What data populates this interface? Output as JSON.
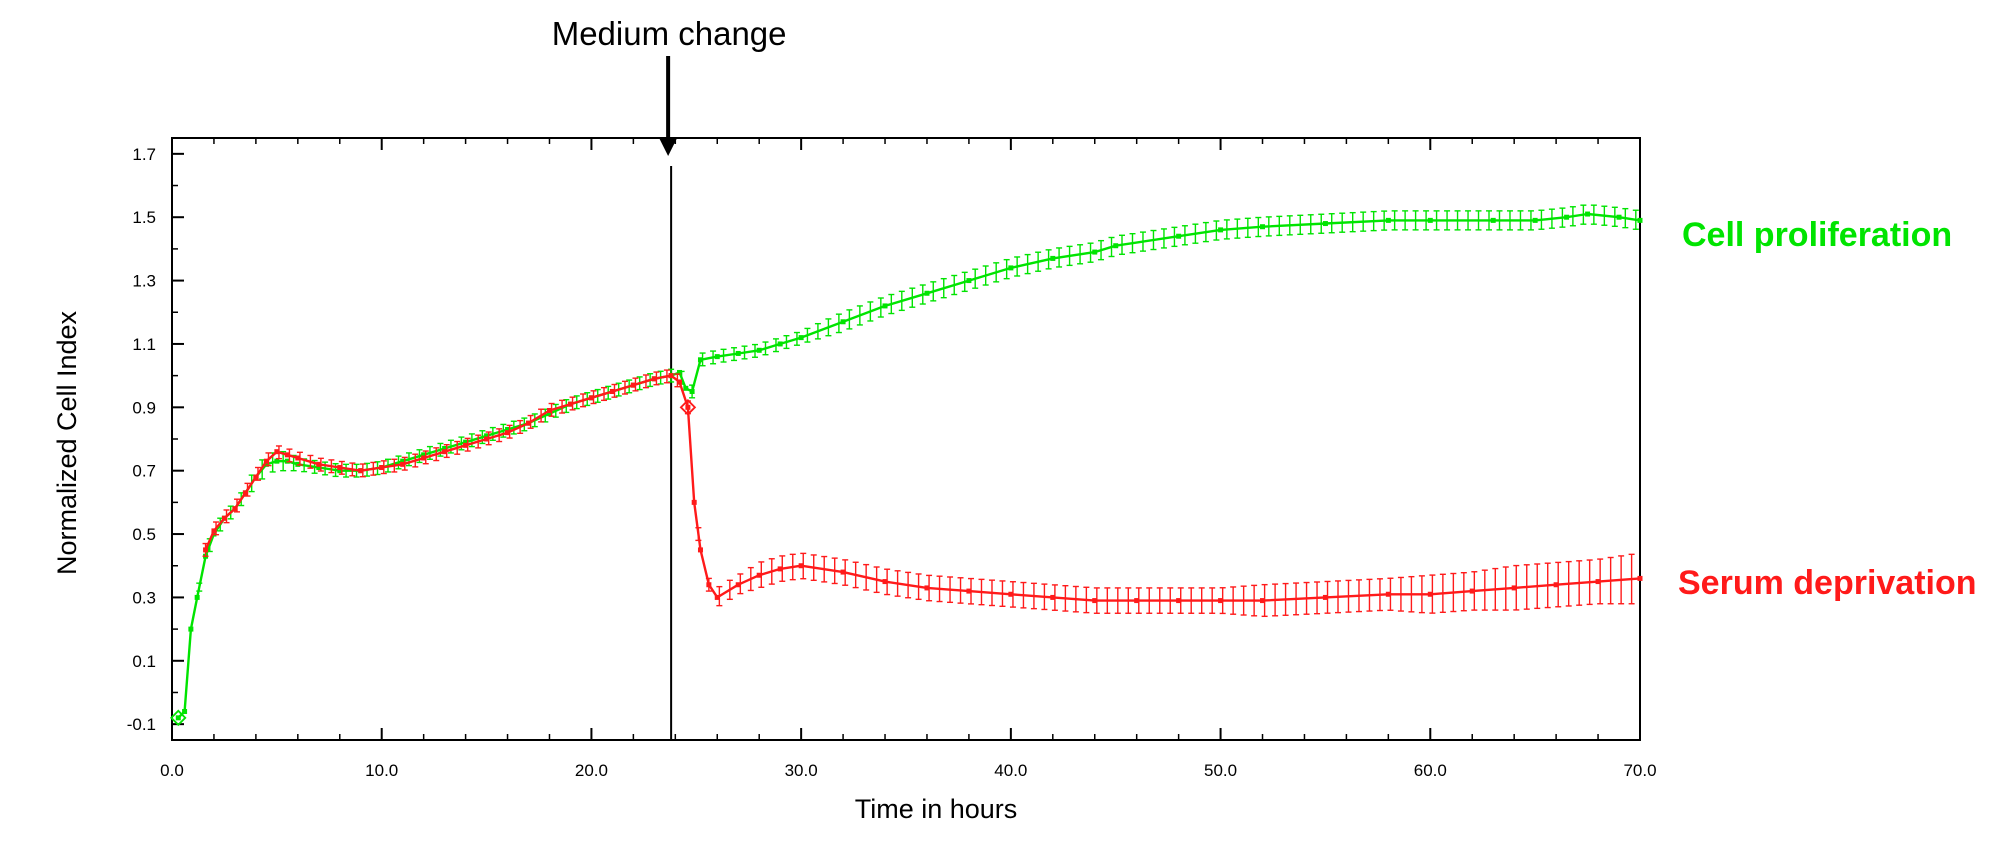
{
  "chart_data": {
    "type": "line",
    "xlabel": "Time in hours",
    "ylabel": "Normalized Cell Index",
    "xlim": [
      0,
      70
    ],
    "ylim": [
      -0.15,
      1.75
    ],
    "xticks": [
      0.0,
      10.0,
      20.0,
      30.0,
      40.0,
      50.0,
      60.0,
      70.0
    ],
    "xtick_labels": [
      "0.0",
      "10.0",
      "20.0",
      "30.0",
      "40.0",
      "50.0",
      "60.0",
      "70.0"
    ],
    "yticks": [
      -0.1,
      0.1,
      0.3,
      0.5,
      0.7,
      0.9,
      1.1,
      1.3,
      1.5,
      1.7
    ],
    "ytick_labels": [
      "-0.1",
      "0.1",
      "0.3",
      "0.5",
      "0.7",
      "0.9",
      "1.1",
      "1.3",
      "1.5",
      "1.7"
    ],
    "grid": false,
    "annotations": [
      {
        "text": "Medium change",
        "x": 23.8
      }
    ],
    "series": [
      {
        "name": "Cell proliferation",
        "color": "#00e400",
        "x": [
          0.3,
          0.6,
          0.9,
          1.2,
          1.6,
          2.0,
          2.5,
          3.0,
          3.5,
          4.0,
          4.5,
          5.0,
          5.5,
          6.0,
          7.0,
          8.0,
          9.0,
          10.0,
          11.0,
          12.0,
          13.0,
          14.0,
          15.0,
          16.0,
          17.0,
          18.0,
          19.0,
          20.0,
          21.0,
          22.0,
          23.0,
          23.8,
          24.2,
          24.5,
          24.8,
          25.2,
          26.0,
          27.0,
          28.0,
          29.0,
          30.0,
          32.0,
          34.0,
          36.0,
          38.0,
          40.0,
          42.0,
          44.0,
          45.0,
          48.0,
          50.0,
          52.0,
          55.0,
          58.0,
          60.0,
          63.0,
          65.0,
          66.5,
          67.5,
          69.0,
          70.0
        ],
        "values": [
          -0.08,
          -0.06,
          0.2,
          0.3,
          0.43,
          0.5,
          0.55,
          0.58,
          0.63,
          0.68,
          0.72,
          0.73,
          0.73,
          0.72,
          0.71,
          0.7,
          0.7,
          0.71,
          0.73,
          0.75,
          0.77,
          0.79,
          0.81,
          0.83,
          0.85,
          0.88,
          0.91,
          0.93,
          0.95,
          0.97,
          0.99,
          1.0,
          1.01,
          0.96,
          0.95,
          1.05,
          1.06,
          1.07,
          1.08,
          1.1,
          1.12,
          1.17,
          1.22,
          1.26,
          1.3,
          1.34,
          1.37,
          1.39,
          1.41,
          1.44,
          1.46,
          1.47,
          1.48,
          1.49,
          1.49,
          1.49,
          1.49,
          1.5,
          1.51,
          1.5,
          1.49
        ],
        "error": [
          0,
          0,
          0,
          0.01,
          0.02,
          0.02,
          0.02,
          0.02,
          0.02,
          0.03,
          0.03,
          0.03,
          0.03,
          0.02,
          0.02,
          0.02,
          0.02,
          0.02,
          0.02,
          0.02,
          0.02,
          0.02,
          0.02,
          0.02,
          0.02,
          0.02,
          0.02,
          0.02,
          0.02,
          0.02,
          0.02,
          0.02,
          0.02,
          0.02,
          0.02,
          0.02,
          0.02,
          0.02,
          0.02,
          0.02,
          0.02,
          0.03,
          0.03,
          0.03,
          0.03,
          0.03,
          0.03,
          0.03,
          0.03,
          0.03,
          0.03,
          0.03,
          0.03,
          0.03,
          0.03,
          0.03,
          0.03,
          0.03,
          0.03,
          0.03,
          0.03
        ]
      },
      {
        "name": "Serum deprivation",
        "color": "#ff1a1a",
        "x": [
          1.6,
          2.0,
          2.5,
          3.0,
          3.5,
          4.0,
          4.5,
          5.0,
          5.5,
          6.0,
          7.0,
          8.0,
          9.0,
          10.0,
          11.0,
          12.0,
          13.0,
          14.0,
          15.0,
          16.0,
          17.0,
          18.0,
          19.0,
          20.0,
          21.0,
          22.0,
          23.0,
          23.8,
          24.2,
          24.6,
          24.9,
          25.2,
          25.6,
          26.0,
          27.0,
          28.0,
          29.0,
          30.0,
          32.0,
          34.0,
          36.0,
          38.0,
          40.0,
          42.0,
          44.0,
          46.0,
          48.0,
          50.0,
          52.0,
          55.0,
          58.0,
          60.0,
          62.0,
          64.0,
          66.0,
          68.0,
          70.0
        ],
        "values": [
          0.45,
          0.51,
          0.55,
          0.58,
          0.63,
          0.68,
          0.73,
          0.76,
          0.75,
          0.74,
          0.72,
          0.71,
          0.7,
          0.71,
          0.72,
          0.74,
          0.76,
          0.78,
          0.8,
          0.82,
          0.85,
          0.89,
          0.91,
          0.93,
          0.95,
          0.97,
          0.99,
          1.0,
          0.98,
          0.9,
          0.6,
          0.45,
          0.34,
          0.3,
          0.34,
          0.37,
          0.39,
          0.4,
          0.38,
          0.35,
          0.33,
          0.32,
          0.31,
          0.3,
          0.29,
          0.29,
          0.29,
          0.29,
          0.29,
          0.3,
          0.31,
          0.31,
          0.32,
          0.33,
          0.34,
          0.35,
          0.36
        ],
        "error": [
          0.02,
          0.02,
          0.02,
          0.02,
          0.02,
          0.02,
          0.02,
          0.02,
          0.02,
          0.02,
          0.02,
          0.02,
          0.02,
          0.02,
          0.02,
          0.02,
          0.02,
          0.02,
          0.02,
          0.02,
          0.02,
          0.02,
          0.02,
          0.02,
          0.02,
          0.02,
          0.02,
          0.02,
          0.02,
          0.02,
          0.02,
          0.02,
          0.02,
          0.03,
          0.03,
          0.04,
          0.04,
          0.04,
          0.04,
          0.04,
          0.04,
          0.04,
          0.04,
          0.04,
          0.04,
          0.04,
          0.04,
          0.04,
          0.05,
          0.05,
          0.05,
          0.06,
          0.06,
          0.07,
          0.07,
          0.07,
          0.08
        ]
      }
    ]
  }
}
